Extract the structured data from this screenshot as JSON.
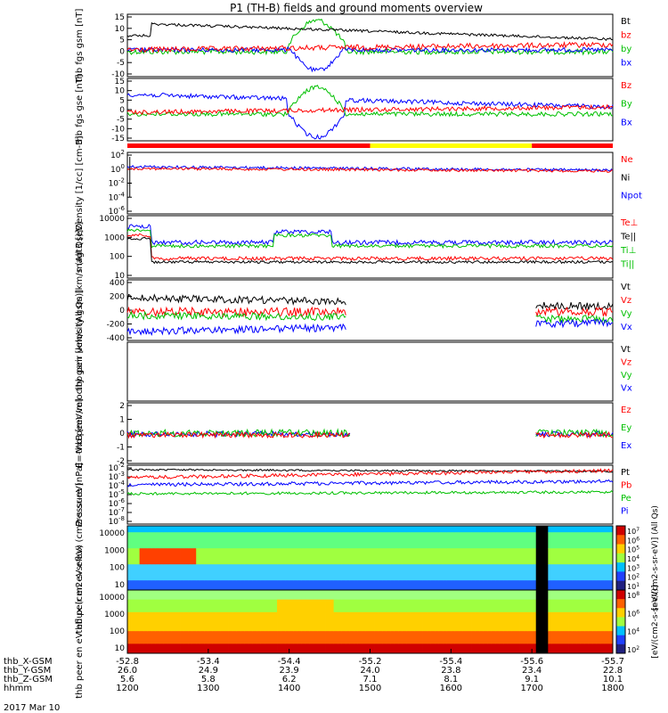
{
  "title": "P1 (TH-B) fields and ground moments overview",
  "date_label": "2017 Mar 10",
  "colors": {
    "black": "#000000",
    "red": "#ff0000",
    "green": "#00c000",
    "blue": "#0000ff",
    "yellow": "#ffff00"
  },
  "chart_data": [
    {
      "type": "line",
      "ylabel": "thb fgs gsm [nT]",
      "ylim": [
        -15,
        15
      ],
      "yticks": [
        "15",
        "10",
        "5",
        "0",
        "-5",
        "-10"
      ],
      "legend": [
        {
          "name": "Bt",
          "color": "black"
        },
        {
          "name": "bz",
          "color": "red"
        },
        {
          "name": "by",
          "color": "green"
        },
        {
          "name": "bx",
          "color": "blue"
        }
      ]
    },
    {
      "type": "line",
      "ylabel": "thb fgs gse [nT]",
      "ylim": [
        -15,
        15
      ],
      "yticks": [
        "15",
        "10",
        "5",
        "0",
        "-5",
        "-10",
        "-15"
      ],
      "legend": [
        {
          "name": "Bz",
          "color": "red"
        },
        {
          "name": "By",
          "color": "green"
        },
        {
          "name": "Bx",
          "color": "blue"
        }
      ]
    },
    {
      "type": "line",
      "ylabel": "Density [1/cc] [cm-3]",
      "ylim": [
        "1e-6",
        "1e2"
      ],
      "yticks": [
        "10^2",
        "10^0",
        "10^-2",
        "10^-4",
        "10^-6"
      ],
      "legend": [
        {
          "name": "Ne",
          "color": "red"
        },
        {
          "name": "Ni",
          "color": "black"
        },
        {
          "name": "Npot",
          "color": "blue"
        }
      ]
    },
    {
      "type": "line",
      "ylabel": "magt3 [eV]",
      "ylim": [
        1,
        10000
      ],
      "yticks": [
        "10000",
        "1000",
        "100",
        "10"
      ],
      "legend": [
        {
          "name": "Te⊥",
          "color": "red"
        },
        {
          "name": "Te||",
          "color": "black"
        },
        {
          "name": "Ti⊥",
          "color": "green"
        },
        {
          "name": "Ti||",
          "color": "green"
        }
      ]
    },
    {
      "type": "line",
      "ylabel": "thb peir velocity gsm [km/s (All Qs)]",
      "ylim": [
        -400,
        400
      ],
      "yticks": [
        "400",
        "200",
        "0",
        "-200",
        "-400"
      ],
      "legend": [
        {
          "name": "Vt",
          "color": "black"
        },
        {
          "name": "Vz",
          "color": "red"
        },
        {
          "name": "Vy",
          "color": "green"
        },
        {
          "name": "Vx",
          "color": "blue"
        }
      ]
    },
    {
      "type": "line",
      "ylabel": "thb peer velocity gsm [km/s (All Qs)]",
      "ylim": [
        -400,
        400
      ],
      "yticks": [],
      "legend": [
        {
          "name": "Vt",
          "color": "black"
        },
        {
          "name": "Vz",
          "color": "red"
        },
        {
          "name": "Vy",
          "color": "green"
        },
        {
          "name": "Vx",
          "color": "blue"
        }
      ]
    },
    {
      "type": "line",
      "ylabel": "E=-VxB [mV/m]",
      "ylim": [
        -2,
        2
      ],
      "yticks": [
        "2",
        "1",
        "0",
        "-1",
        "-2"
      ],
      "legend": [
        {
          "name": "Ez",
          "color": "red"
        },
        {
          "name": "Ey",
          "color": "green"
        },
        {
          "name": "Ex",
          "color": "blue"
        }
      ]
    },
    {
      "type": "line",
      "ylabel": "Pressure [nPa]",
      "ylim": [
        "1e-8",
        "1e-2"
      ],
      "yticks": [
        "10^-2",
        "10^-3",
        "10^-4",
        "10^-5",
        "10^-6",
        "10^-7",
        "10^-8"
      ],
      "legend": [
        {
          "name": "Pt",
          "color": "black"
        },
        {
          "name": "Pb",
          "color": "red"
        },
        {
          "name": "Pe",
          "color": "green"
        },
        {
          "name": "Pi",
          "color": "blue"
        }
      ]
    },
    {
      "type": "heatmap",
      "ylabel": "thb peir en eV eflux (cm2-s-sr-eV)",
      "yticks": [
        "10000",
        "1000",
        "100",
        "10"
      ],
      "colorbar_ticks": [
        "10^7",
        "10^6",
        "10^5",
        "10^4",
        "10^3",
        "10^2",
        "10^1"
      ],
      "colorbar_label": "[eV/(cm2-s-sr-eV)] (All Qs)"
    },
    {
      "type": "heatmap",
      "ylabel": "thb peer en eV eflux (cm2-s-sr-eV)",
      "yticks": [
        "10000",
        "1000",
        "100",
        "10"
      ],
      "colorbar_ticks": [
        "10^8",
        "10^6",
        "10^4",
        "10^2"
      ],
      "colorbar_label": "[eV/(cm2-s-sr-eV)]"
    }
  ],
  "x_axis": {
    "rows": [
      {
        "label": "thb_X-GSM",
        "values": [
          "-52.8",
          "-53.4",
          "-54.4",
          "-55.2",
          "-55.4",
          "-55.6",
          "-55.7"
        ]
      },
      {
        "label": "thb_Y-GSM",
        "values": [
          "26.0",
          "24.9",
          "23.9",
          "24.0",
          "23.8",
          "23.4",
          "22.8"
        ]
      },
      {
        "label": "thb_Z-GSM",
        "values": [
          "5.6",
          "5.8",
          "6.2",
          "7.1",
          "8.1",
          "9.1",
          "10.1"
        ]
      },
      {
        "label": "hhmm",
        "values": [
          "1200",
          "1300",
          "1400",
          "1500",
          "1600",
          "1700",
          "1800"
        ]
      }
    ]
  },
  "mode_bar": [
    {
      "from": "1200",
      "to": "1500",
      "color": "red"
    },
    {
      "from": "1500",
      "to": "1700",
      "color": "yellow"
    },
    {
      "from": "1700",
      "to": "1800",
      "color": "red"
    }
  ]
}
